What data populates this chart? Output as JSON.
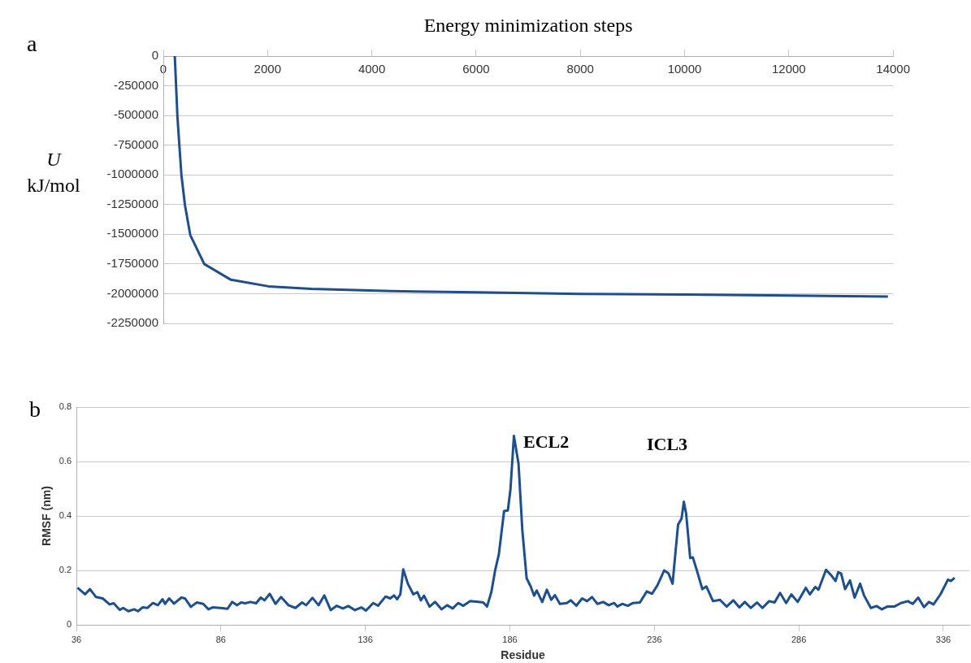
{
  "chart_data": [
    {
      "type": "line",
      "xlabel": "Energy minimization steps",
      "ylabel": "U kJ/mol",
      "annotations": [
        "a"
      ],
      "xlim": [
        0,
        14000
      ],
      "xticks": [
        0,
        2000,
        4000,
        6000,
        8000,
        10000,
        12000,
        14000
      ],
      "ylim": [
        -2250000,
        0
      ],
      "yticks": [
        0,
        -250000,
        -500000,
        -750000,
        -1000000,
        -1250000,
        -1500000,
        -1750000,
        -2000000,
        -2250000
      ],
      "grid": "y",
      "legend": false,
      "marker": "none",
      "series": [
        {
          "color": "#1f4e8a",
          "x": [
            220,
            270,
            307,
            347,
            415,
            517,
            785,
            1297,
            2015,
            2835,
            4375,
            6000,
            8000,
            10000,
            12000,
            13900
          ],
          "values": [
            0,
            -505000,
            -747000,
            -1000000,
            -1255000,
            -1507000,
            -1750000,
            -1883000,
            -1938000,
            -1960000,
            -1978000,
            -1989000,
            -2002000,
            -2008000,
            -2015000,
            -2025000
          ]
        }
      ]
    },
    {
      "type": "line",
      "xlabel": "Residue",
      "ylabel": "RMSF (nm)",
      "annotations": [
        "b",
        "ECL2",
        "ICL3"
      ],
      "xlim": [
        36,
        345
      ],
      "xticks": [
        36,
        86,
        136,
        186,
        236,
        286,
        336
      ],
      "ylim": [
        0,
        0.8
      ],
      "yticks": [
        0,
        0.2,
        0.4,
        0.6,
        0.8
      ],
      "grid": "y",
      "legend": false,
      "marker": "none",
      "series": [
        {
          "color": "#1c4f8c",
          "x": [
            36.4,
            39,
            40.7,
            42.8,
            45.1,
            47.5,
            48.9,
            51,
            52.2,
            54,
            56,
            57.3,
            58.9,
            60.6,
            62.5,
            64.2,
            65.8,
            66.7,
            68.1,
            69.8,
            72.3,
            73.6,
            75.6,
            77.7,
            79.9,
            81.7,
            83.1,
            85.8,
            88.3,
            89.9,
            91.6,
            93,
            94.4,
            96.3,
            98.2,
            99.8,
            101.1,
            102.9,
            104.9,
            106.8,
            109.4,
            111.8,
            114.1,
            115.5,
            117.7,
            119.8,
            121.8,
            124,
            126.1,
            128.2,
            130.1,
            132.4,
            134.6,
            136.2,
            138.7,
            140.4,
            143,
            144.6,
            145.9,
            147,
            148.1,
            149.1,
            150.7,
            152.6,
            154,
            155.2,
            156.3,
            158.2,
            160.1,
            162.4,
            164.3,
            166.2,
            168.1,
            169.9,
            172.3,
            175.1,
            176.8,
            178.1,
            179.6,
            180.9,
            182.2,
            184,
            185.3,
            186.2,
            187.4,
            189,
            190.3,
            191.8,
            193.2,
            194.4,
            195.3,
            197.2,
            198.8,
            200.3,
            201.6,
            203.3,
            205.7,
            207.1,
            209,
            211,
            212.7,
            214.4,
            216.3,
            218.3,
            220.2,
            222.1,
            223.2,
            224.9,
            226.8,
            228.6,
            231,
            233.4,
            235.2,
            237.1,
            239.4,
            240.9,
            242.3,
            244.2,
            245.4,
            246.2,
            247,
            248.4,
            249.3,
            250.7,
            252.6,
            254,
            256.3,
            258.7,
            261,
            263.3,
            265.4,
            267.3,
            269.4,
            271.5,
            273.4,
            275.7,
            277.6,
            279.5,
            281.6,
            283.4,
            285.6,
            287,
            288.4,
            289.8,
            291.7,
            292.8,
            295.4,
            297.1,
            298.7,
            299.6,
            300.6,
            302,
            303.7,
            305.3,
            307.2,
            308.6,
            310.9,
            312.9,
            314.7,
            316.6,
            319,
            321.3,
            323.7,
            325.4,
            327.3,
            329.3,
            331,
            332.6,
            335,
            337.6,
            338.6,
            339.9
          ],
          "values": [
            0.136,
            0.112,
            0.131,
            0.102,
            0.097,
            0.075,
            0.079,
            0.055,
            0.062,
            0.05,
            0.057,
            0.05,
            0.064,
            0.062,
            0.08,
            0.072,
            0.094,
            0.077,
            0.097,
            0.078,
            0.1,
            0.097,
            0.066,
            0.082,
            0.077,
            0.057,
            0.064,
            0.062,
            0.059,
            0.084,
            0.072,
            0.082,
            0.079,
            0.084,
            0.079,
            0.1,
            0.09,
            0.114,
            0.077,
            0.102,
            0.072,
            0.062,
            0.082,
            0.072,
            0.099,
            0.072,
            0.108,
            0.054,
            0.07,
            0.06,
            0.069,
            0.054,
            0.064,
            0.052,
            0.08,
            0.07,
            0.104,
            0.097,
            0.108,
            0.094,
            0.112,
            0.204,
            0.151,
            0.112,
            0.12,
            0.09,
            0.107,
            0.067,
            0.084,
            0.057,
            0.072,
            0.06,
            0.08,
            0.07,
            0.087,
            0.084,
            0.082,
            0.067,
            0.121,
            0.2,
            0.26,
            0.418,
            0.42,
            0.497,
            0.694,
            0.591,
            0.349,
            0.171,
            0.141,
            0.107,
            0.126,
            0.084,
            0.129,
            0.092,
            0.109,
            0.077,
            0.08,
            0.09,
            0.07,
            0.097,
            0.087,
            0.102,
            0.077,
            0.084,
            0.072,
            0.08,
            0.067,
            0.077,
            0.07,
            0.08,
            0.082,
            0.123,
            0.114,
            0.146,
            0.2,
            0.189,
            0.151,
            0.368,
            0.39,
            0.452,
            0.408,
            0.245,
            0.248,
            0.2,
            0.131,
            0.141,
            0.087,
            0.092,
            0.067,
            0.09,
            0.064,
            0.084,
            0.062,
            0.082,
            0.062,
            0.087,
            0.082,
            0.117,
            0.08,
            0.112,
            0.084,
            0.11,
            0.136,
            0.112,
            0.139,
            0.129,
            0.202,
            0.183,
            0.161,
            0.193,
            0.189,
            0.131,
            0.163,
            0.1,
            0.151,
            0.107,
            0.062,
            0.069,
            0.057,
            0.067,
            0.067,
            0.08,
            0.087,
            0.077,
            0.1,
            0.065,
            0.084,
            0.075,
            0.112,
            0.166,
            0.161,
            0.173
          ]
        }
      ]
    }
  ]
}
